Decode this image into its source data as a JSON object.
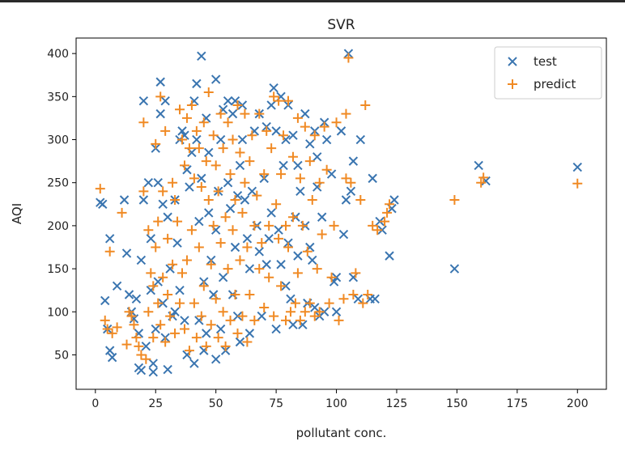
{
  "chart_data": {
    "type": "scatter",
    "title": "SVR",
    "xlabel": "pollutant conc.",
    "ylabel": "AQI",
    "xlim": [
      -8,
      212
    ],
    "ylim": [
      10,
      418
    ],
    "xticks": [
      0,
      25,
      50,
      75,
      100,
      125,
      150,
      175,
      200
    ],
    "yticks": [
      50,
      100,
      150,
      200,
      250,
      300,
      350,
      400
    ],
    "grid": false,
    "legend_position": "top-right",
    "series": [
      {
        "name": "test",
        "marker": "x",
        "color": "#3a75b0",
        "points": [
          [
            2,
            227
          ],
          [
            3,
            225
          ],
          [
            4,
            113
          ],
          [
            5,
            80
          ],
          [
            6,
            55
          ],
          [
            6,
            185
          ],
          [
            7,
            47
          ],
          [
            9,
            130
          ],
          [
            12,
            230
          ],
          [
            13,
            168
          ],
          [
            14,
            120
          ],
          [
            15,
            100
          ],
          [
            16,
            92
          ],
          [
            17,
            115
          ],
          [
            18,
            75
          ],
          [
            18,
            35
          ],
          [
            19,
            160
          ],
          [
            19,
            32
          ],
          [
            20,
            345
          ],
          [
            20,
            230
          ],
          [
            21,
            60
          ],
          [
            22,
            250
          ],
          [
            23,
            185
          ],
          [
            23,
            125
          ],
          [
            24,
            40
          ],
          [
            24,
            30
          ],
          [
            25,
            80
          ],
          [
            25,
            290
          ],
          [
            26,
            250
          ],
          [
            26,
            135
          ],
          [
            27,
            367
          ],
          [
            27,
            330
          ],
          [
            28,
            225
          ],
          [
            28,
            110
          ],
          [
            29,
            345
          ],
          [
            29,
            70
          ],
          [
            30,
            210
          ],
          [
            30,
            33
          ],
          [
            31,
            150
          ],
          [
            32,
            95
          ],
          [
            33,
            100
          ],
          [
            33,
            230
          ],
          [
            34,
            180
          ],
          [
            35,
            300
          ],
          [
            35,
            125
          ],
          [
            36,
            310
          ],
          [
            37,
            90
          ],
          [
            37,
            305
          ],
          [
            38,
            265
          ],
          [
            38,
            50
          ],
          [
            39,
            245
          ],
          [
            40,
            285
          ],
          [
            41,
            345
          ],
          [
            41,
            40
          ],
          [
            42,
            365
          ],
          [
            42,
            300
          ],
          [
            43,
            205
          ],
          [
            43,
            90
          ],
          [
            44,
            397
          ],
          [
            44,
            255
          ],
          [
            45,
            135
          ],
          [
            45,
            55
          ],
          [
            46,
            325
          ],
          [
            46,
            75
          ],
          [
            47,
            285
          ],
          [
            47,
            215
          ],
          [
            48,
            160
          ],
          [
            49,
            120
          ],
          [
            50,
            370
          ],
          [
            50,
            195
          ],
          [
            50,
            45
          ],
          [
            51,
            240
          ],
          [
            52,
            300
          ],
          [
            52,
            80
          ],
          [
            53,
            335
          ],
          [
            53,
            140
          ],
          [
            54,
            55
          ],
          [
            55,
            345
          ],
          [
            55,
            250
          ],
          [
            56,
            220
          ],
          [
            57,
            330
          ],
          [
            57,
            120
          ],
          [
            58,
            345
          ],
          [
            58,
            175
          ],
          [
            59,
            235
          ],
          [
            59,
            95
          ],
          [
            60,
            270
          ],
          [
            60,
            65
          ],
          [
            61,
            300
          ],
          [
            61,
            340
          ],
          [
            62,
            230
          ],
          [
            63,
            185
          ],
          [
            64,
            150
          ],
          [
            64,
            75
          ],
          [
            65,
            240
          ],
          [
            66,
            310
          ],
          [
            67,
            200
          ],
          [
            68,
            330
          ],
          [
            68,
            170
          ],
          [
            69,
            95
          ],
          [
            70,
            255
          ],
          [
            71,
            315
          ],
          [
            71,
            155
          ],
          [
            72,
            185
          ],
          [
            73,
            215
          ],
          [
            73,
            340
          ],
          [
            74,
            360
          ],
          [
            75,
            80
          ],
          [
            75,
            310
          ],
          [
            76,
            195
          ],
          [
            77,
            350
          ],
          [
            77,
            155
          ],
          [
            78,
            270
          ],
          [
            79,
            300
          ],
          [
            79,
            130
          ],
          [
            80,
            340
          ],
          [
            80,
            180
          ],
          [
            81,
            115
          ],
          [
            82,
            305
          ],
          [
            82,
            85
          ],
          [
            83,
            210
          ],
          [
            84,
            270
          ],
          [
            84,
            165
          ],
          [
            85,
            240
          ],
          [
            86,
            85
          ],
          [
            87,
            200
          ],
          [
            87,
            330
          ],
          [
            88,
            110
          ],
          [
            89,
            295
          ],
          [
            89,
            175
          ],
          [
            90,
            160
          ],
          [
            91,
            310
          ],
          [
            91,
            105
          ],
          [
            92,
            245
          ],
          [
            92,
            280
          ],
          [
            93,
            95
          ],
          [
            94,
            210
          ],
          [
            95,
            320
          ],
          [
            95,
            100
          ],
          [
            96,
            300
          ],
          [
            98,
            260
          ],
          [
            99,
            135
          ],
          [
            100,
            140
          ],
          [
            100,
            100
          ],
          [
            102,
            310
          ],
          [
            103,
            190
          ],
          [
            104,
            230
          ],
          [
            105,
            400
          ],
          [
            106,
            240
          ],
          [
            107,
            140
          ],
          [
            107,
            275
          ],
          [
            109,
            115
          ],
          [
            110,
            300
          ],
          [
            114,
            115
          ],
          [
            115,
            255
          ],
          [
            116,
            115
          ],
          [
            118,
            205
          ],
          [
            119,
            195
          ],
          [
            122,
            165
          ],
          [
            123,
            220
          ],
          [
            124,
            230
          ],
          [
            149,
            150
          ],
          [
            159,
            270
          ],
          [
            162,
            252
          ],
          [
            200,
            268
          ]
        ]
      },
      {
        "name": "predict",
        "marker": "+",
        "color": "#f08a24",
        "points": [
          [
            2,
            243
          ],
          [
            4,
            90
          ],
          [
            5,
            80
          ],
          [
            6,
            170
          ],
          [
            7,
            75
          ],
          [
            9,
            82
          ],
          [
            11,
            215
          ],
          [
            13,
            62
          ],
          [
            14,
            100
          ],
          [
            15,
            95
          ],
          [
            16,
            85
          ],
          [
            17,
            70
          ],
          [
            18,
            60
          ],
          [
            19,
            50
          ],
          [
            20,
            320
          ],
          [
            20,
            240
          ],
          [
            21,
            45
          ],
          [
            22,
            100
          ],
          [
            22,
            195
          ],
          [
            23,
            145
          ],
          [
            24,
            70
          ],
          [
            24,
            130
          ],
          [
            25,
            295
          ],
          [
            25,
            175
          ],
          [
            26,
            205
          ],
          [
            26,
            110
          ],
          [
            27,
            350
          ],
          [
            27,
            85
          ],
          [
            28,
            240
          ],
          [
            28,
            140
          ],
          [
            29,
            310
          ],
          [
            29,
            65
          ],
          [
            30,
            185
          ],
          [
            30,
            120
          ],
          [
            31,
            95
          ],
          [
            32,
            155
          ],
          [
            32,
            250
          ],
          [
            33,
            230
          ],
          [
            33,
            75
          ],
          [
            34,
            205
          ],
          [
            35,
            335
          ],
          [
            35,
            110
          ],
          [
            36,
            300
          ],
          [
            36,
            145
          ],
          [
            37,
            80
          ],
          [
            37,
            270
          ],
          [
            38,
            160
          ],
          [
            38,
            325
          ],
          [
            39,
            290
          ],
          [
            39,
            55
          ],
          [
            40,
            340
          ],
          [
            40,
            195
          ],
          [
            41,
            110
          ],
          [
            41,
            255
          ],
          [
            42,
            310
          ],
          [
            42,
            70
          ],
          [
            43,
            175
          ],
          [
            43,
            290
          ],
          [
            44,
            245
          ],
          [
            44,
            95
          ],
          [
            45,
            320
          ],
          [
            45,
            130
          ],
          [
            46,
            275
          ],
          [
            46,
            60
          ],
          [
            47,
            230
          ],
          [
            47,
            355
          ],
          [
            48,
            155
          ],
          [
            48,
            85
          ],
          [
            49,
            305
          ],
          [
            49,
            200
          ],
          [
            50,
            270
          ],
          [
            50,
            115
          ],
          [
            51,
            240
          ],
          [
            51,
            70
          ],
          [
            52,
            330
          ],
          [
            52,
            180
          ],
          [
            53,
            290
          ],
          [
            53,
            100
          ],
          [
            54,
            210
          ],
          [
            54,
            60
          ],
          [
            55,
            320
          ],
          [
            55,
            150
          ],
          [
            56,
            260
          ],
          [
            56,
            90
          ],
          [
            57,
            300
          ],
          [
            57,
            195
          ],
          [
            58,
            230
          ],
          [
            58,
            120
          ],
          [
            59,
            340
          ],
          [
            59,
            75
          ],
          [
            60,
            285
          ],
          [
            60,
            160
          ],
          [
            61,
            215
          ],
          [
            61,
            95
          ],
          [
            62,
            330
          ],
          [
            62,
            250
          ],
          [
            63,
            175
          ],
          [
            63,
            65
          ],
          [
            64,
            275
          ],
          [
            64,
            120
          ],
          [
            65,
            305
          ],
          [
            66,
            200
          ],
          [
            66,
            90
          ],
          [
            67,
            235
          ],
          [
            68,
            150
          ],
          [
            68,
            330
          ],
          [
            69,
            180
          ],
          [
            70,
            260
          ],
          [
            70,
            105
          ],
          [
            71,
            310
          ],
          [
            72,
            200
          ],
          [
            72,
            140
          ],
          [
            73,
            290
          ],
          [
            74,
            95
          ],
          [
            74,
            350
          ],
          [
            75,
            225
          ],
          [
            76,
            185
          ],
          [
            76,
            345
          ],
          [
            77,
            260
          ],
          [
            77,
            130
          ],
          [
            78,
            305
          ],
          [
            79,
            200
          ],
          [
            79,
            90
          ],
          [
            80,
            345
          ],
          [
            80,
            175
          ],
          [
            81,
            100
          ],
          [
            82,
            280
          ],
          [
            82,
            210
          ],
          [
            83,
            110
          ],
          [
            84,
            325
          ],
          [
            84,
            145
          ],
          [
            85,
            255
          ],
          [
            85,
            90
          ],
          [
            86,
            200
          ],
          [
            87,
            315
          ],
          [
            87,
            100
          ],
          [
            88,
            170
          ],
          [
            89,
            275
          ],
          [
            89,
            110
          ],
          [
            90,
            230
          ],
          [
            91,
            305
          ],
          [
            91,
            95
          ],
          [
            92,
            150
          ],
          [
            93,
            250
          ],
          [
            93,
            100
          ],
          [
            94,
            190
          ],
          [
            95,
            315
          ],
          [
            96,
            265
          ],
          [
            97,
            110
          ],
          [
            98,
            140
          ],
          [
            99,
            200
          ],
          [
            100,
            320
          ],
          [
            101,
            90
          ],
          [
            103,
            115
          ],
          [
            104,
            330
          ],
          [
            104,
            255
          ],
          [
            105,
            395
          ],
          [
            106,
            250
          ],
          [
            107,
            120
          ],
          [
            108,
            145
          ],
          [
            110,
            230
          ],
          [
            111,
            110
          ],
          [
            112,
            340
          ],
          [
            113,
            120
          ],
          [
            115,
            200
          ],
          [
            117,
            195
          ],
          [
            120,
            205
          ],
          [
            121,
            215
          ],
          [
            122,
            225
          ],
          [
            149,
            230
          ],
          [
            160,
            250
          ],
          [
            161,
            256
          ],
          [
            200,
            249
          ]
        ]
      }
    ]
  }
}
